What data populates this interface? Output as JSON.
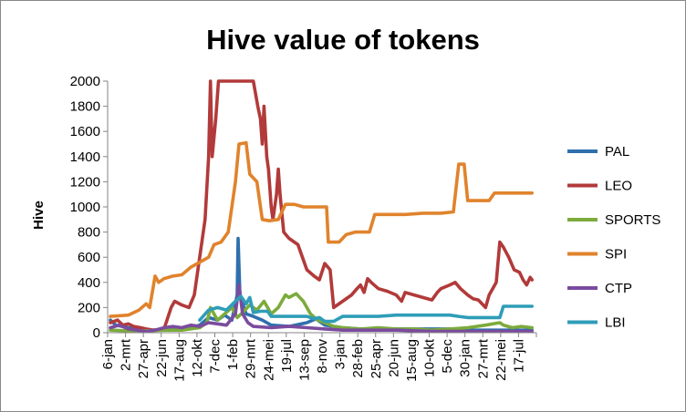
{
  "chart_data": {
    "type": "line",
    "title": "Hive value of tokens",
    "ylabel": "Hive",
    "xlabel": "",
    "ylim": [
      0,
      2000
    ],
    "yticks": [
      0,
      200,
      400,
      600,
      800,
      1000,
      1200,
      1400,
      1600,
      1800,
      2000
    ],
    "grid": false,
    "legend_position": "right",
    "categories": [
      "6-jan",
      "2-mrt",
      "27-apr",
      "22-jun",
      "17-aug",
      "12-okt",
      "7-dec",
      "1-feb",
      "29-mrt",
      "24-mei",
      "19-jul",
      "13-sep",
      "8-nov",
      "3-jan",
      "28-feb",
      "25-apr",
      "20-jun",
      "15-aug",
      "10-okt",
      "5-dec",
      "30-jan",
      "27-mrt",
      "22-mei",
      "17-jul"
    ],
    "series": [
      {
        "name": "PAL",
        "color": "#2f6fad",
        "points": [
          [
            0,
            100
          ],
          [
            0.3,
            60
          ],
          [
            1,
            40
          ],
          [
            2,
            20
          ],
          [
            3,
            20
          ],
          [
            4,
            30
          ],
          [
            4.5,
            40
          ],
          [
            5,
            60
          ],
          [
            5.5,
            120
          ],
          [
            6,
            100
          ],
          [
            6.4,
            140
          ],
          [
            6.8,
            100
          ],
          [
            7.1,
            300
          ],
          [
            7.15,
            750
          ],
          [
            7.25,
            300
          ],
          [
            7.6,
            150
          ],
          [
            8,
            130
          ],
          [
            8.5,
            100
          ],
          [
            9,
            60
          ],
          [
            10,
            50
          ],
          [
            11,
            80
          ],
          [
            11.5,
            110
          ],
          [
            12,
            60
          ],
          [
            13,
            40
          ],
          [
            14,
            30
          ],
          [
            15,
            30
          ],
          [
            16,
            30
          ],
          [
            17,
            30
          ],
          [
            18,
            30
          ],
          [
            19,
            30
          ],
          [
            20,
            20
          ],
          [
            21,
            20
          ],
          [
            22,
            20
          ],
          [
            23,
            20
          ],
          [
            23.6,
            20
          ]
        ]
      },
      {
        "name": "LEO",
        "color": "#b23a3a",
        "points": [
          [
            0,
            80
          ],
          [
            0.4,
            100
          ],
          [
            0.7,
            60
          ],
          [
            1,
            70
          ],
          [
            1.3,
            50
          ],
          [
            1.7,
            40
          ],
          [
            2,
            30
          ],
          [
            2.4,
            20
          ],
          [
            3,
            30
          ],
          [
            3.4,
            200
          ],
          [
            3.6,
            250
          ],
          [
            4,
            220
          ],
          [
            4.4,
            200
          ],
          [
            4.7,
            300
          ],
          [
            5,
            600
          ],
          [
            5.3,
            900
          ],
          [
            5.5,
            1400
          ],
          [
            5.6,
            2000
          ],
          [
            5.7,
            1400
          ],
          [
            5.9,
            1700
          ],
          [
            6.05,
            2000
          ],
          [
            6.5,
            2000
          ],
          [
            7.0,
            2000
          ],
          [
            7.5,
            2000
          ],
          [
            8.0,
            2000
          ],
          [
            8.25,
            1800
          ],
          [
            8.4,
            1700
          ],
          [
            8.5,
            1500
          ],
          [
            8.6,
            1800
          ],
          [
            8.75,
            1400
          ],
          [
            8.85,
            1300
          ],
          [
            9,
            1000
          ],
          [
            9.1,
            900
          ],
          [
            9.3,
            1100
          ],
          [
            9.4,
            1300
          ],
          [
            9.5,
            1100
          ],
          [
            9.7,
            800
          ],
          [
            10,
            750
          ],
          [
            10.5,
            700
          ],
          [
            11,
            500
          ],
          [
            11.4,
            450
          ],
          [
            11.7,
            420
          ],
          [
            12,
            550
          ],
          [
            12.3,
            500
          ],
          [
            12.5,
            200
          ],
          [
            13,
            250
          ],
          [
            13.5,
            300
          ],
          [
            13.8,
            350
          ],
          [
            14,
            380
          ],
          [
            14.2,
            320
          ],
          [
            14.4,
            430
          ],
          [
            14.6,
            400
          ],
          [
            15,
            350
          ],
          [
            15.5,
            330
          ],
          [
            16,
            300
          ],
          [
            16.3,
            250
          ],
          [
            16.5,
            320
          ],
          [
            17,
            300
          ],
          [
            17.5,
            280
          ],
          [
            18,
            260
          ],
          [
            18.3,
            320
          ],
          [
            18.5,
            350
          ],
          [
            19,
            380
          ],
          [
            19.3,
            400
          ],
          [
            19.6,
            350
          ],
          [
            20,
            300
          ],
          [
            20.3,
            270
          ],
          [
            20.6,
            260
          ],
          [
            21,
            200
          ],
          [
            21.2,
            300
          ],
          [
            21.4,
            350
          ],
          [
            21.6,
            400
          ],
          [
            21.8,
            720
          ],
          [
            22,
            680
          ],
          [
            22.3,
            600
          ],
          [
            22.6,
            500
          ],
          [
            22.9,
            480
          ],
          [
            23.1,
            420
          ],
          [
            23.3,
            380
          ],
          [
            23.5,
            440
          ],
          [
            23.6,
            420
          ]
        ]
      },
      {
        "name": "SPORTS",
        "color": "#7cab3c",
        "points": [
          [
            0,
            20
          ],
          [
            1,
            15
          ],
          [
            2,
            15
          ],
          [
            3,
            20
          ],
          [
            4,
            20
          ],
          [
            5,
            40
          ],
          [
            5.4,
            80
          ],
          [
            5.6,
            200
          ],
          [
            6,
            100
          ],
          [
            6.4,
            150
          ],
          [
            6.8,
            200
          ],
          [
            7.1,
            120
          ],
          [
            7.4,
            160
          ],
          [
            7.8,
            220
          ],
          [
            8.2,
            180
          ],
          [
            8.6,
            250
          ],
          [
            9,
            150
          ],
          [
            9.4,
            200
          ],
          [
            9.8,
            300
          ],
          [
            10,
            280
          ],
          [
            10.4,
            310
          ],
          [
            10.8,
            250
          ],
          [
            11.2,
            150
          ],
          [
            11.6,
            100
          ],
          [
            12,
            80
          ],
          [
            12.5,
            50
          ],
          [
            13,
            40
          ],
          [
            14,
            30
          ],
          [
            15,
            40
          ],
          [
            16,
            30
          ],
          [
            17,
            30
          ],
          [
            18,
            20
          ],
          [
            19,
            30
          ],
          [
            20,
            40
          ],
          [
            21,
            60
          ],
          [
            21.8,
            80
          ],
          [
            22,
            60
          ],
          [
            22.5,
            40
          ],
          [
            23,
            50
          ],
          [
            23.6,
            40
          ]
        ]
      },
      {
        "name": "SPI",
        "color": "#e0832c",
        "points": [
          [
            0,
            130
          ],
          [
            1,
            140
          ],
          [
            1.6,
            180
          ],
          [
            2,
            230
          ],
          [
            2.2,
            200
          ],
          [
            2.5,
            450
          ],
          [
            2.7,
            400
          ],
          [
            3,
            430
          ],
          [
            3.5,
            450
          ],
          [
            4,
            460
          ],
          [
            4.5,
            520
          ],
          [
            5,
            560
          ],
          [
            5.5,
            600
          ],
          [
            5.8,
            700
          ],
          [
            6.2,
            720
          ],
          [
            6.6,
            800
          ],
          [
            7,
            1200
          ],
          [
            7.2,
            1500
          ],
          [
            7.6,
            1510
          ],
          [
            7.8,
            1260
          ],
          [
            8.2,
            1200
          ],
          [
            8.5,
            900
          ],
          [
            8.9,
            890
          ],
          [
            9.4,
            900
          ],
          [
            9.8,
            1020
          ],
          [
            10.3,
            1020
          ],
          [
            10.8,
            1000
          ],
          [
            11.5,
            1000
          ],
          [
            12.1,
            1000
          ],
          [
            12.2,
            720
          ],
          [
            12.8,
            720
          ],
          [
            13.2,
            780
          ],
          [
            13.7,
            800
          ],
          [
            14.5,
            800
          ],
          [
            14.8,
            940
          ],
          [
            15.5,
            940
          ],
          [
            16.5,
            940
          ],
          [
            17.5,
            950
          ],
          [
            18.5,
            950
          ],
          [
            19.2,
            960
          ],
          [
            19.5,
            1340
          ],
          [
            19.8,
            1340
          ],
          [
            20,
            1050
          ],
          [
            20.5,
            1050
          ],
          [
            21.2,
            1050
          ],
          [
            21.5,
            1110
          ],
          [
            22.5,
            1110
          ],
          [
            23.6,
            1110
          ]
        ]
      },
      {
        "name": "CTP",
        "color": "#7b4b9e",
        "points": [
          [
            0,
            40
          ],
          [
            0.5,
            60
          ],
          [
            1,
            30
          ],
          [
            2,
            10
          ],
          [
            2.5,
            20
          ],
          [
            3,
            40
          ],
          [
            3.5,
            50
          ],
          [
            4,
            40
          ],
          [
            4.5,
            60
          ],
          [
            5,
            50
          ],
          [
            5.5,
            80
          ],
          [
            6,
            70
          ],
          [
            6.5,
            60
          ],
          [
            7,
            150
          ],
          [
            7.2,
            380
          ],
          [
            7.4,
            150
          ],
          [
            7.7,
            80
          ],
          [
            8,
            50
          ],
          [
            9,
            40
          ],
          [
            10,
            50
          ],
          [
            11,
            40
          ],
          [
            12,
            30
          ],
          [
            13,
            20
          ],
          [
            14,
            20
          ],
          [
            15,
            20
          ],
          [
            16,
            20
          ],
          [
            17,
            15
          ],
          [
            18,
            10
          ],
          [
            19,
            10
          ],
          [
            20,
            10
          ],
          [
            21,
            10
          ],
          [
            22,
            10
          ],
          [
            23,
            10
          ],
          [
            23.6,
            10
          ]
        ]
      },
      {
        "name": "LBI",
        "color": "#2f9db8",
        "points": [
          [
            5,
            100
          ],
          [
            5.5,
            180
          ],
          [
            6,
            200
          ],
          [
            6.5,
            180
          ],
          [
            7,
            250
          ],
          [
            7.3,
            290
          ],
          [
            7.6,
            230
          ],
          [
            7.8,
            280
          ],
          [
            8,
            160
          ],
          [
            8.4,
            170
          ],
          [
            8.8,
            170
          ],
          [
            9,
            130
          ],
          [
            10,
            130
          ],
          [
            11,
            130
          ],
          [
            11.4,
            110
          ],
          [
            11.7,
            120
          ],
          [
            12,
            90
          ],
          [
            12.5,
            90
          ],
          [
            13,
            130
          ],
          [
            14,
            130
          ],
          [
            15,
            130
          ],
          [
            16,
            140
          ],
          [
            17,
            140
          ],
          [
            18,
            140
          ],
          [
            19,
            140
          ],
          [
            19.5,
            130
          ],
          [
            20,
            120
          ],
          [
            21,
            120
          ],
          [
            21.8,
            120
          ],
          [
            22,
            210
          ],
          [
            23,
            210
          ],
          [
            23.6,
            210
          ]
        ]
      }
    ]
  }
}
